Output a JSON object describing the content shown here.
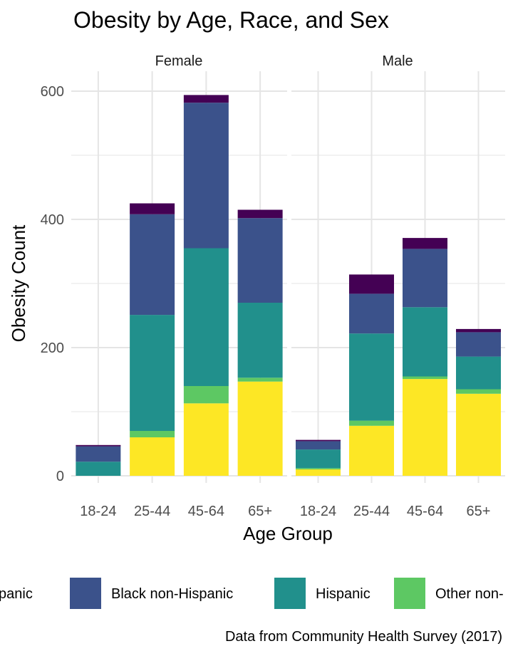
{
  "chart_data": {
    "type": "bar",
    "stacked": true,
    "title": "Obesity by Age, Race, and Sex",
    "xlabel": "Age Group",
    "ylabel": "Obesity Count",
    "caption": "Data from Community Health Survey (2017)",
    "ylim": [
      0,
      600
    ],
    "yticks": [
      0,
      200,
      400,
      600
    ],
    "categories": [
      "18-24",
      "25-44",
      "45-64",
      "65+"
    ],
    "grid": true,
    "legend_position": "bottom",
    "legend_entries_visible": [
      "spanic",
      "Black non-Hispanic",
      "Hispanic",
      "Other non-"
    ],
    "series_order_bottom_to_top": [
      "yellow-series",
      "Other non-Hispanic",
      "Hispanic",
      "Black non-Hispanic",
      "purple-series"
    ],
    "colors": [
      "#FDE725",
      "#5DC863",
      "#21908C",
      "#3B528B",
      "#440154"
    ],
    "panels": [
      {
        "strip": "Female",
        "stacks": [
          [
            0,
            0,
            22,
            24,
            2
          ],
          [
            60,
            10,
            181,
            157,
            17
          ],
          [
            113,
            27,
            215,
            227,
            12
          ],
          [
            147,
            6,
            117,
            132,
            13
          ]
        ]
      },
      {
        "strip": "Male",
        "stacks": [
          [
            10,
            2,
            29,
            13,
            2
          ],
          [
            78,
            8,
            136,
            62,
            30
          ],
          [
            151,
            4,
            108,
            91,
            17
          ],
          [
            128,
            7,
            51,
            38,
            5
          ]
        ]
      }
    ]
  }
}
